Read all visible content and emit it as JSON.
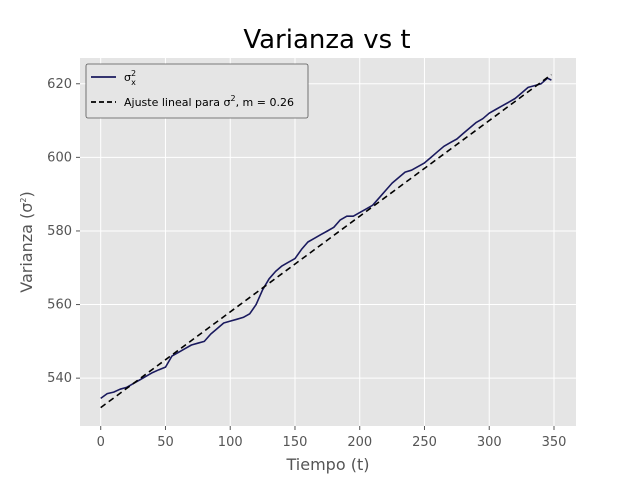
{
  "chart_data": {
    "type": "line",
    "title": "Varianza vs t",
    "xlabel": "Tiempo (t)",
    "ylabel_main": "Varianza (σ",
    "ylabel_sup": "2",
    "ylabel_end": ")",
    "xlim": [
      -16,
      367
    ],
    "ylim": [
      527,
      627
    ],
    "xticks": [
      0,
      50,
      100,
      150,
      200,
      250,
      300,
      350
    ],
    "yticks": [
      540,
      560,
      580,
      600,
      620
    ],
    "grid": true,
    "background": "#e5e5e5",
    "legend_position": "top-left",
    "series": [
      {
        "name_main": "σ",
        "name_sup": "2",
        "name_sub": "x",
        "color": "#1a1a5e",
        "style": "solid",
        "x": [
          0,
          5,
          10,
          15,
          20,
          25,
          30,
          35,
          40,
          45,
          50,
          55,
          60,
          65,
          70,
          75,
          80,
          85,
          90,
          95,
          100,
          105,
          110,
          115,
          120,
          125,
          130,
          135,
          140,
          145,
          150,
          155,
          160,
          165,
          170,
          175,
          180,
          185,
          190,
          195,
          200,
          205,
          210,
          215,
          220,
          225,
          230,
          235,
          240,
          245,
          250,
          255,
          260,
          265,
          270,
          275,
          280,
          285,
          290,
          295,
          300,
          305,
          310,
          315,
          320,
          325,
          330,
          335,
          340,
          345,
          348
        ],
        "y": [
          534.5,
          535.8,
          536.2,
          537,
          537.5,
          538.5,
          539.5,
          540.5,
          541.5,
          542.3,
          543,
          546,
          547,
          548,
          549,
          549.5,
          550,
          552,
          553.5,
          555,
          555.5,
          556,
          556.5,
          557.5,
          560,
          564,
          567,
          569,
          570.5,
          571.5,
          572.5,
          575,
          577,
          578,
          579,
          580,
          581,
          583,
          584,
          584,
          585,
          586,
          587,
          589,
          591,
          593,
          594.5,
          596,
          596.5,
          597.5,
          598.5,
          600,
          601.5,
          603,
          604,
          605,
          606.5,
          608,
          609.5,
          610.5,
          612,
          613,
          614,
          615,
          616,
          617.5,
          619,
          619.5,
          620,
          621.5,
          621
        ]
      },
      {
        "name": "Ajuste lineal para σ², m = 0.26",
        "name_pre": "Ajuste lineal para σ",
        "name_sup": "2",
        "name_post": ", m = 0.26",
        "color": "#000000",
        "style": "dashed",
        "slope": 0.26,
        "intercept": 532,
        "x": [
          0,
          348
        ],
        "y": [
          532,
          622.48
        ]
      }
    ]
  }
}
